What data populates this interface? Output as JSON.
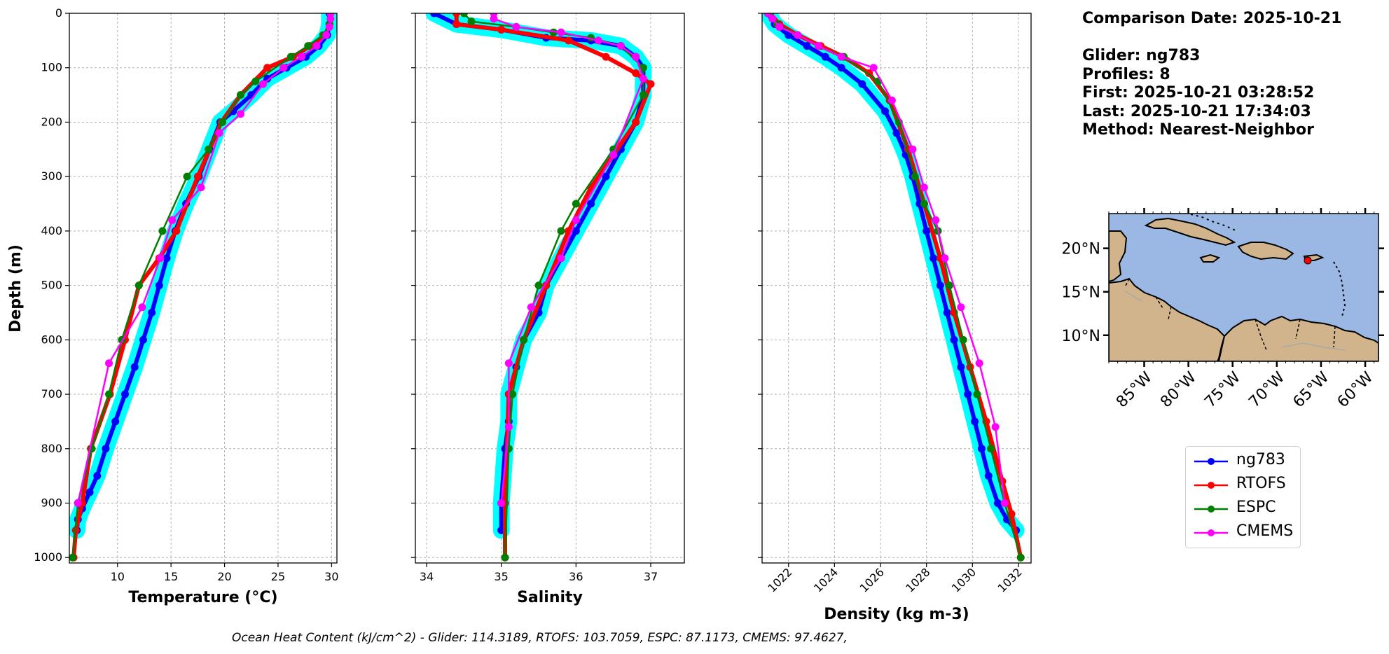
{
  "info": {
    "comparison_date": "Comparison Date: 2025-10-21",
    "glider": "Glider: ng783",
    "profiles": "Profiles: 8",
    "first": "First: 2025-10-21 03:28:52",
    "last": "Last: 2025-10-21 17:34:03",
    "method": "Method: Nearest-Neighbor"
  },
  "footer": "Ocean Heat Content (kJ/cm^2) - Glider: 114.3189,  RTOFS: 103.7059,  ESPC: 87.1173,  CMEMS: 97.4627,",
  "colors": {
    "ng783": "#0000ff",
    "RTOFS": "#ff0000",
    "ESPC": "#008000",
    "CMEMS": "#ff00ff",
    "glider_spread": "#00ffff",
    "land": "#d2b48c",
    "ocean": "#9ab8e3"
  },
  "legend": [
    {
      "name": "ng783",
      "color": "#0000ff"
    },
    {
      "name": "RTOFS",
      "color": "#ff0000"
    },
    {
      "name": "ESPC",
      "color": "#008000"
    },
    {
      "name": "CMEMS",
      "color": "#ff00ff"
    }
  ],
  "map": {
    "lat_labels": [
      "20°N",
      "15°N",
      "10°N"
    ],
    "lon_labels": [
      "85°W",
      "80°W",
      "75°W",
      "70°W",
      "65°W",
      "60°W"
    ],
    "glider_location": [
      -66.5,
      18.6
    ]
  },
  "chart_data": [
    {
      "type": "line",
      "xlabel": "Temperature (°C)",
      "ylabel": "Depth (m)",
      "xlim": [
        5.5,
        30.5
      ],
      "ylim": [
        1010,
        0
      ],
      "xticks": [
        10,
        15,
        20,
        25,
        30
      ],
      "yticks": [
        0,
        100,
        200,
        300,
        400,
        500,
        600,
        700,
        800,
        900,
        1000
      ],
      "grid": true,
      "series": [
        {
          "name": "ng783",
          "x": [
            29.8,
            29.8,
            29.6,
            28.8,
            27.6,
            25.8,
            24.0,
            22.5,
            20.8,
            19.6,
            18.6,
            17.6,
            16.4,
            15.4,
            14.6,
            13.9,
            13.2,
            12.4,
            11.6,
            10.7,
            9.8,
            8.9,
            8.1,
            7.4,
            6.7,
            6.3,
            6.2
          ],
          "y": [
            0,
            20,
            40,
            60,
            80,
            100,
            120,
            150,
            180,
            200,
            250,
            300,
            350,
            400,
            450,
            500,
            550,
            600,
            650,
            700,
            750,
            800,
            850,
            880,
            910,
            930,
            950
          ]
        },
        {
          "name": "RTOFS",
          "x": [
            29.9,
            29.8,
            29.4,
            28.0,
            26.4,
            24.0,
            21.5,
            19.7,
            17.5,
            15.5,
            13.9,
            12.0,
            10.7,
            9.3,
            7.5,
            6.7,
            6.1,
            5.9
          ],
          "y": [
            0,
            20,
            40,
            60,
            80,
            100,
            150,
            200,
            300,
            400,
            450,
            500,
            600,
            700,
            800,
            900,
            950,
            1000
          ]
        },
        {
          "name": "ESPC",
          "x": [
            29.9,
            29.8,
            29.2,
            27.8,
            26.2,
            22.9,
            21.5,
            19.8,
            18.5,
            16.5,
            14.2,
            12.0,
            10.4,
            9.2,
            7.6,
            6.3,
            5.8
          ],
          "y": [
            0,
            20,
            40,
            60,
            80,
            125,
            150,
            200,
            250,
            300,
            400,
            500,
            600,
            700,
            800,
            900,
            1000
          ]
        },
        {
          "name": "CMEMS",
          "x": [
            29.9,
            29.9,
            29.8,
            29.5,
            28.6,
            27.2,
            25.5,
            23.6,
            21.5,
            19.5,
            17.8,
            15.1,
            14.0,
            12.3,
            9.2,
            6.3
          ],
          "y": [
            0,
            10,
            25,
            40,
            60,
            80,
            100,
            130,
            185,
            220,
            320,
            380,
            450,
            540,
            643,
            900
          ]
        }
      ]
    },
    {
      "type": "line",
      "xlabel": "Salinity",
      "ylabel": "",
      "xlim": [
        33.85,
        37.45
      ],
      "ylim": [
        1010,
        0
      ],
      "xticks": [
        34,
        35,
        36,
        37
      ],
      "yticks": [
        0,
        100,
        200,
        300,
        400,
        500,
        600,
        700,
        800,
        900,
        1000
      ],
      "grid": true,
      "series": [
        {
          "name": "ng783",
          "x": [
            34.1,
            34.4,
            35.0,
            35.6,
            36.2,
            36.6,
            36.8,
            36.9,
            36.9,
            36.8,
            36.6,
            36.4,
            36.2,
            36.0,
            35.8,
            35.6,
            35.5,
            35.3,
            35.2,
            35.1,
            35.1,
            35.05,
            35.0,
            35.0
          ],
          "y": [
            0,
            20,
            30,
            45,
            50,
            60,
            80,
            100,
            150,
            200,
            250,
            300,
            350,
            400,
            450,
            500,
            550,
            600,
            650,
            700,
            750,
            800,
            900,
            950
          ]
        },
        {
          "name": "RTOFS",
          "x": [
            34.4,
            34.4,
            35.0,
            35.9,
            36.4,
            36.8,
            37.0,
            36.8,
            36.5,
            36.2,
            35.9,
            35.6,
            35.3,
            35.1,
            35.05,
            35.05
          ],
          "y": [
            0,
            20,
            30,
            50,
            80,
            110,
            130,
            200,
            260,
            320,
            400,
            500,
            600,
            700,
            900,
            1000
          ]
        },
        {
          "name": "ESPC",
          "x": [
            34.5,
            34.6,
            35.2,
            35.7,
            36.2,
            36.6,
            36.9,
            36.9,
            36.5,
            36.0,
            35.8,
            35.5,
            35.3,
            35.15,
            35.1,
            35.05
          ],
          "y": [
            0,
            15,
            25,
            35,
            45,
            60,
            100,
            150,
            250,
            350,
            400,
            500,
            600,
            700,
            800,
            1000
          ]
        },
        {
          "name": "CMEMS",
          "x": [
            34.9,
            34.9,
            35.2,
            35.8,
            36.3,
            36.6,
            36.8,
            36.9,
            36.5,
            36.0,
            35.8,
            35.4,
            35.1,
            35.1,
            35.0
          ],
          "y": [
            0,
            10,
            25,
            35,
            50,
            60,
            80,
            120,
            260,
            380,
            450,
            540,
            643,
            760,
            900
          ]
        }
      ]
    },
    {
      "type": "line",
      "xlabel": "Density (kg m-3)",
      "ylabel": "",
      "xlim": [
        1020.85,
        1032.55
      ],
      "ylim": [
        1010,
        0
      ],
      "xticks": [
        1022,
        1024,
        1026,
        1028,
        1030,
        1032
      ],
      "yticks": [
        0,
        100,
        200,
        300,
        400,
        500,
        600,
        700,
        800,
        900,
        1000
      ],
      "grid": true,
      "series": [
        {
          "name": "ng783",
          "x": [
            1021.1,
            1021.4,
            1022.0,
            1022.8,
            1023.6,
            1024.3,
            1025.2,
            1026.2,
            1026.7,
            1027.1,
            1027.4,
            1027.7,
            1028.0,
            1028.3,
            1028.6,
            1028.9,
            1029.2,
            1029.5,
            1029.8,
            1030.1,
            1030.4,
            1030.7,
            1031.1,
            1031.5,
            1031.9
          ],
          "y": [
            0,
            20,
            40,
            60,
            80,
            100,
            130,
            180,
            220,
            260,
            300,
            350,
            400,
            450,
            500,
            550,
            600,
            650,
            700,
            750,
            800,
            850,
            900,
            930,
            950
          ]
        },
        {
          "name": "RTOFS",
          "x": [
            1021.2,
            1021.6,
            1022.4,
            1023.4,
            1024.4,
            1025.5,
            1026.4,
            1027.2,
            1027.9,
            1028.6,
            1029.2,
            1029.9,
            1030.6,
            1031.3,
            1031.7,
            1032.1
          ],
          "y": [
            0,
            20,
            40,
            60,
            80,
            110,
            160,
            250,
            350,
            450,
            550,
            650,
            750,
            860,
            920,
            1000
          ]
        },
        {
          "name": "ESPC",
          "x": [
            1021.2,
            1021.5,
            1022.4,
            1023.3,
            1024.4,
            1025.9,
            1026.8,
            1027.5,
            1027.9,
            1028.5,
            1029.0,
            1029.6,
            1030.2,
            1030.8,
            1031.4,
            1032.1
          ],
          "y": [
            0,
            20,
            40,
            60,
            80,
            125,
            200,
            300,
            350,
            400,
            500,
            600,
            700,
            800,
            900,
            1000
          ]
        },
        {
          "name": "CMEMS",
          "x": [
            1021.1,
            1021.3,
            1021.6,
            1022.4,
            1023.3,
            1024.3,
            1025.7,
            1026.5,
            1027.4,
            1027.9,
            1028.4,
            1028.8,
            1029.5,
            1030.3,
            1031.0,
            1031.4
          ],
          "y": [
            0,
            10,
            25,
            40,
            60,
            80,
            100,
            160,
            250,
            320,
            380,
            450,
            540,
            643,
            760,
            900
          ]
        }
      ]
    }
  ]
}
